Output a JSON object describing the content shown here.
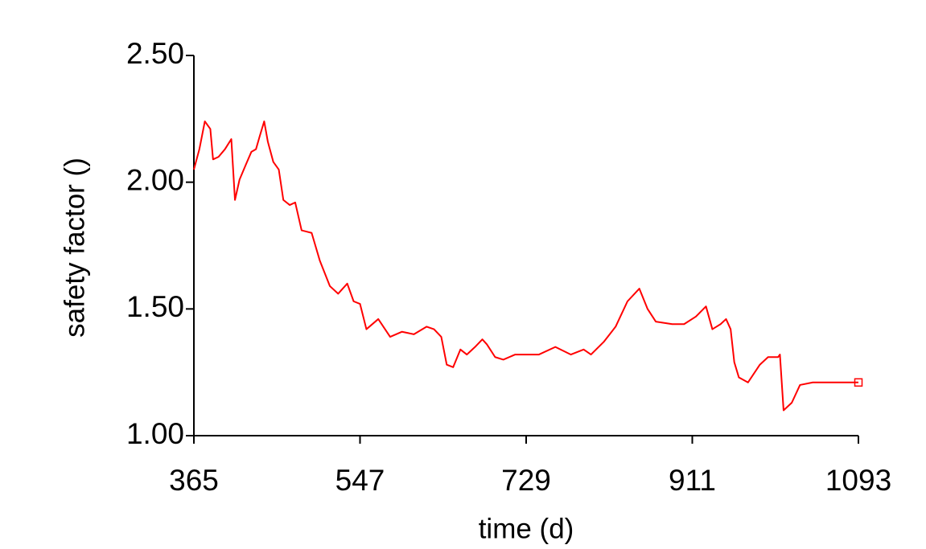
{
  "chart_data": {
    "type": "line",
    "x_label": "time (d)",
    "y_label": "safety factor ()",
    "xlim": [
      365,
      1093
    ],
    "xticks": [
      365,
      547,
      729,
      911,
      1093
    ],
    "ylim": [
      1.0,
      2.5
    ],
    "yticks": [
      {
        "value": 2.5,
        "label": "2.50"
      },
      {
        "value": 2.0,
        "label": "2.00"
      },
      {
        "value": 1.5,
        "label": "1.50"
      },
      {
        "value": 1.0,
        "label": "1.00"
      }
    ],
    "end_marker": true,
    "series": [
      {
        "color": "#ff0000",
        "x": [
          365,
          371,
          377,
          383,
          386,
          392,
          399,
          406,
          408,
          410,
          415,
          422,
          428,
          433,
          437,
          442,
          446,
          452,
          458,
          463,
          470,
          476,
          483,
          494,
          503,
          514,
          523,
          533,
          540,
          547,
          554,
          567,
          580,
          593,
          606,
          620,
          628,
          636,
          642,
          649,
          657,
          664,
          673,
          681,
          686,
          695,
          704,
          717,
          743,
          761,
          778,
          792,
          800,
          814,
          827,
          840,
          853,
          862,
          871,
          889,
          902,
          915,
          926,
          933,
          942,
          948,
          953,
          957,
          962,
          972,
          985,
          994,
          1005,
          1007,
          1011,
          1020,
          1029,
          1043,
          1093
        ],
        "values": [
          2.05,
          2.13,
          2.24,
          2.21,
          2.09,
          2.1,
          2.13,
          2.17,
          2.05,
          1.93,
          2.01,
          2.07,
          2.12,
          2.13,
          2.18,
          2.24,
          2.16,
          2.08,
          2.05,
          1.93,
          1.91,
          1.92,
          1.81,
          1.8,
          1.69,
          1.59,
          1.56,
          1.6,
          1.53,
          1.52,
          1.42,
          1.46,
          1.39,
          1.41,
          1.4,
          1.43,
          1.42,
          1.39,
          1.28,
          1.27,
          1.34,
          1.32,
          1.35,
          1.38,
          1.36,
          1.31,
          1.3,
          1.32,
          1.32,
          1.35,
          1.32,
          1.34,
          1.32,
          1.37,
          1.43,
          1.53,
          1.58,
          1.5,
          1.45,
          1.44,
          1.44,
          1.47,
          1.51,
          1.42,
          1.44,
          1.46,
          1.42,
          1.29,
          1.23,
          1.21,
          1.28,
          1.31,
          1.31,
          1.32,
          1.1,
          1.13,
          1.2,
          1.21,
          1.21
        ]
      }
    ]
  }
}
